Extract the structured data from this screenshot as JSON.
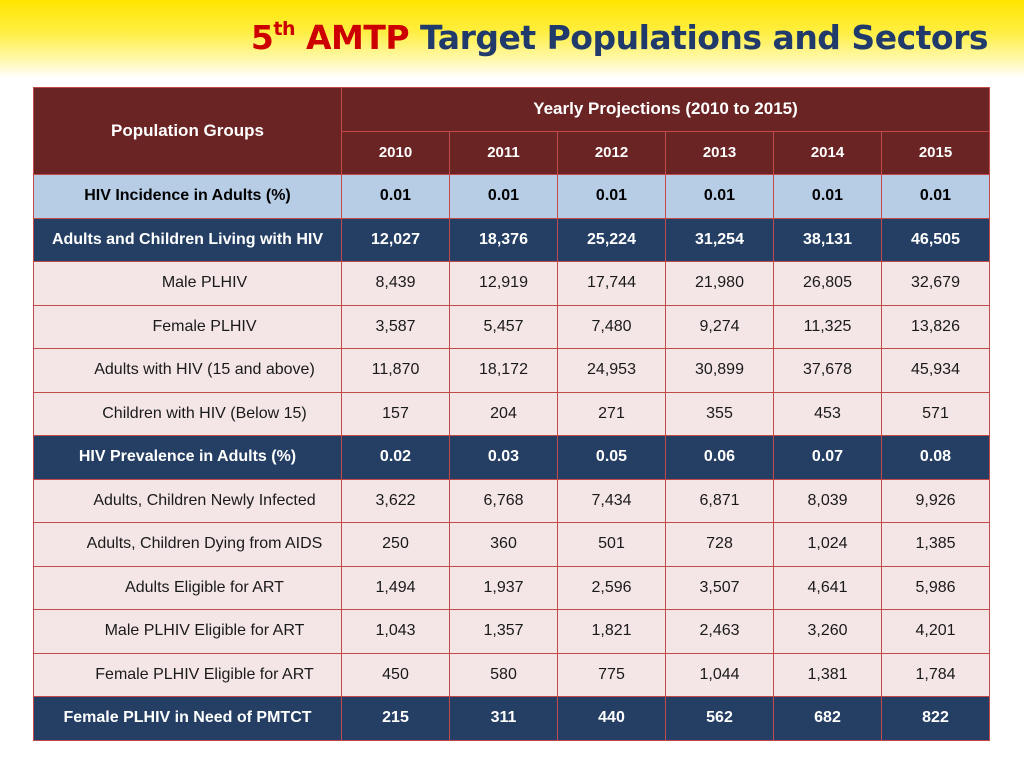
{
  "slide": {
    "title_number": "5",
    "title_sup": "th",
    "title_acronym": "AMTP",
    "title_rest": "Target Populations and Sectors"
  },
  "table": {
    "group_header": "Population Groups",
    "projection_header": "Yearly Projections (2010 to 2015)",
    "years": [
      "2010",
      "2011",
      "2012",
      "2013",
      "2014",
      "2015"
    ],
    "rows": [
      {
        "label": "HIV Incidence in Adults (%)",
        "style": "blue",
        "values": [
          "0.01",
          "0.01",
          "0.01",
          "0.01",
          "0.01",
          "0.01"
        ]
      },
      {
        "label": "Adults and Children Living with HIV",
        "style": "navy",
        "values": [
          "12,027",
          "18,376",
          "25,224",
          "31,254",
          "38,131",
          "46,505"
        ]
      },
      {
        "label": "Male PLHIV",
        "style": "pink",
        "values": [
          "8,439",
          "12,919",
          "17,744",
          "21,980",
          "26,805",
          "32,679"
        ]
      },
      {
        "label": "Female PLHIV",
        "style": "pink",
        "values": [
          "3,587",
          "5,457",
          "7,480",
          "9,274",
          "11,325",
          "13,826"
        ]
      },
      {
        "label": "Adults with HIV (15 and above)",
        "style": "pink",
        "values": [
          "11,870",
          "18,172",
          "24,953",
          "30,899",
          "37,678",
          "45,934"
        ]
      },
      {
        "label": "Children with HIV (Below 15)",
        "style": "pink",
        "values": [
          "157",
          "204",
          "271",
          "355",
          "453",
          "571"
        ]
      },
      {
        "label": "HIV Prevalence in Adults (%)",
        "style": "navy",
        "values": [
          "0.02",
          "0.03",
          "0.05",
          "0.06",
          "0.07",
          "0.08"
        ]
      },
      {
        "label": "Adults, Children Newly Infected",
        "style": "pink",
        "values": [
          "3,622",
          "6,768",
          "7,434",
          "6,871",
          "8,039",
          "9,926"
        ]
      },
      {
        "label": "Adults, Children Dying from AIDS",
        "style": "pink",
        "values": [
          "250",
          "360",
          "501",
          "728",
          "1,024",
          "1,385"
        ]
      },
      {
        "label": "Adults Eligible for ART",
        "style": "pink",
        "values": [
          "1,494",
          "1,937",
          "2,596",
          "3,507",
          "4,641",
          "5,986"
        ]
      },
      {
        "label": "Male PLHIV Eligible for ART",
        "style": "pink",
        "values": [
          "1,043",
          "1,357",
          "1,821",
          "2,463",
          "3,260",
          "4,201"
        ]
      },
      {
        "label": "Female PLHIV Eligible for ART",
        "style": "pink",
        "values": [
          "450",
          "580",
          "775",
          "1,044",
          "1,381",
          "1,784"
        ]
      },
      {
        "label": "Female PLHIV in Need of PMTCT",
        "style": "navy",
        "values": [
          "215",
          "311",
          "440",
          "562",
          "682",
          "822"
        ]
      }
    ]
  },
  "colors": {
    "title_red": "#cc0000",
    "title_navy": "#1f3a6b",
    "header_maroon": "#6b2424",
    "row_blue": "#b7cde6",
    "row_navy": "#243f63",
    "row_pink": "#f4e6e6",
    "grid_line": "#c24a4a",
    "header_band_yellow": "#ffe600"
  }
}
